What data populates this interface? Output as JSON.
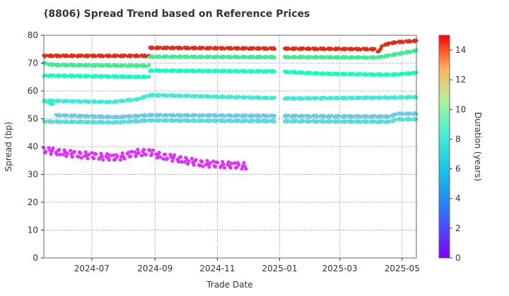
{
  "chart_data": {
    "type": "scatter",
    "title": "(8806)   Spread Trend based on Reference Prices",
    "xlabel": "Trade Date",
    "ylabel": "Spread (bp)",
    "colorbar_label": "Duration (years)",
    "colorbar_range": [
      0,
      15
    ],
    "colorbar_ticks": [
      "0",
      "2",
      "4",
      "6",
      "8",
      "10",
      "12",
      "14"
    ],
    "xlim": [
      "2024-05-15",
      "2025-05-15"
    ],
    "ylim": [
      0,
      80
    ],
    "x_ticks": [
      "2024-07",
      "2024-09",
      "2024-11",
      "2025-01",
      "2025-03",
      "2025-05"
    ],
    "y_ticks": [
      "0",
      "10",
      "20",
      "30",
      "40",
      "50",
      "60",
      "70",
      "80"
    ],
    "grid": true,
    "colormap": "rainbow",
    "series": [
      {
        "duration": 14.2,
        "start": "2024-05-15",
        "end": "2025-05-15",
        "points": [
          [
            "2024-05-15",
            72.6
          ],
          [
            "2024-08-26",
            72.6
          ],
          [
            "2024-08-27",
            75.5
          ],
          [
            "2025-04-05",
            75.0
          ],
          [
            "2025-04-08",
            74.0
          ],
          [
            "2025-04-12",
            76.5
          ],
          [
            "2025-04-25",
            77.5
          ],
          [
            "2025-05-15",
            78.0
          ]
        ]
      },
      {
        "duration": 9.3,
        "start": "2024-05-15",
        "end": "2025-05-15",
        "points": [
          [
            "2024-05-15",
            70.0
          ],
          [
            "2024-05-25",
            69.3
          ],
          [
            "2024-08-26",
            69.0
          ],
          [
            "2024-08-27",
            72.3
          ],
          [
            "2025-04-05",
            72.0
          ],
          [
            "2025-04-15",
            72.5
          ],
          [
            "2025-05-15",
            74.5
          ]
        ]
      },
      {
        "duration": 7.0,
        "start": "2024-05-15",
        "end": "2025-05-15",
        "points": [
          [
            "2024-05-15",
            65.5
          ],
          [
            "2024-08-26",
            65.0
          ],
          [
            "2024-08-27",
            67.3
          ],
          [
            "2024-12-31",
            67.0
          ],
          [
            "2025-02-10",
            66.2
          ],
          [
            "2025-04-20",
            65.8
          ],
          [
            "2025-05-15",
            66.5
          ]
        ]
      },
      {
        "duration": 6.5,
        "start": "2024-05-15",
        "end": "2024-05-25",
        "points": [
          [
            "2024-05-15",
            56.5
          ],
          [
            "2024-05-25",
            55.0
          ]
        ]
      },
      {
        "duration": 5.7,
        "start": "2024-05-15",
        "end": "2025-05-15",
        "points": [
          [
            "2024-05-15",
            56.5
          ],
          [
            "2024-07-20",
            56.0
          ],
          [
            "2024-08-15",
            57.0
          ],
          [
            "2024-08-27",
            58.5
          ],
          [
            "2025-01-10",
            57.3
          ],
          [
            "2025-04-20",
            57.6
          ],
          [
            "2025-05-15",
            57.8
          ]
        ]
      },
      {
        "duration": 4.3,
        "start": "2024-05-25",
        "end": "2025-05-15",
        "points": [
          [
            "2024-05-25",
            51.3
          ],
          [
            "2024-07-25",
            50.6
          ],
          [
            "2024-08-27",
            51.3
          ],
          [
            "2025-04-20",
            50.8
          ],
          [
            "2025-04-25",
            51.8
          ],
          [
            "2025-05-15",
            51.8
          ]
        ]
      },
      {
        "duration": 5.0,
        "start": "2024-05-15",
        "end": "2025-05-15",
        "points": [
          [
            "2024-05-15",
            49.0
          ],
          [
            "2024-07-25",
            48.7
          ],
          [
            "2024-08-27",
            49.4
          ],
          [
            "2025-04-20",
            48.9
          ],
          [
            "2025-04-25",
            49.8
          ],
          [
            "2025-05-15",
            49.8
          ]
        ]
      },
      {
        "duration": 0.9,
        "start": "2024-05-15",
        "end": "2024-12-01",
        "points": [
          [
            "2024-05-15",
            38.8
          ],
          [
            "2024-06-15",
            37.2
          ],
          [
            "2024-07-25",
            36.0
          ],
          [
            "2024-08-15",
            37.8
          ],
          [
            "2024-08-27",
            38.0
          ],
          [
            "2024-09-05",
            36.8
          ],
          [
            "2024-09-25",
            35.5
          ],
          [
            "2024-10-15",
            34.0
          ],
          [
            "2024-11-05",
            33.5
          ],
          [
            "2024-12-01",
            33.0
          ]
        ]
      }
    ]
  }
}
